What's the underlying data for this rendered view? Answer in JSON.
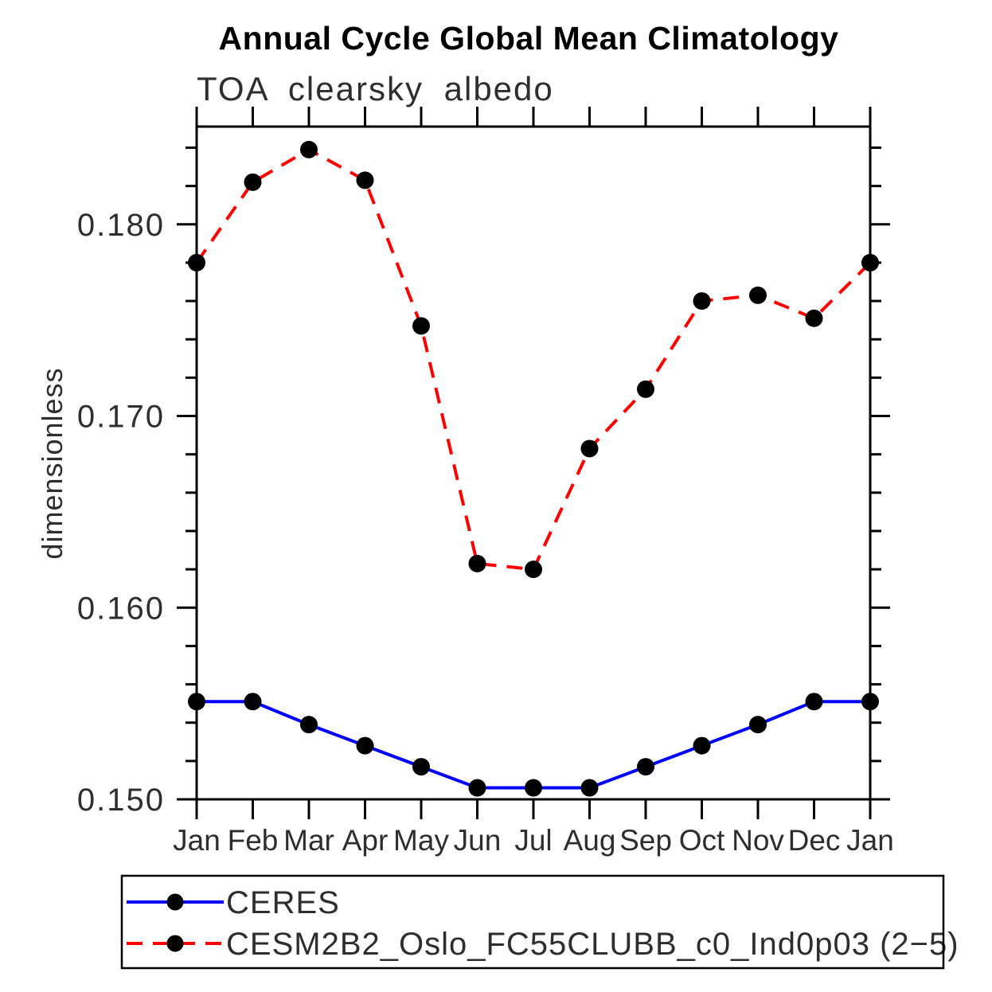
{
  "chart_data": {
    "type": "line",
    "title": "Annual Cycle Global Mean Climatology",
    "subtitle": "TOA clearsky albedo",
    "ylabel": "dimensionless",
    "xlabel": "",
    "x_categories": [
      "Jan",
      "Feb",
      "Mar",
      "Apr",
      "May",
      "Jun",
      "Jul",
      "Aug",
      "Sep",
      "Oct",
      "Nov",
      "Dec",
      "Jan"
    ],
    "ylim": [
      0.15,
      0.1851
    ],
    "yticks_major": [
      0.15,
      0.16,
      0.17,
      0.18
    ],
    "ytick_labels": [
      "0.150",
      "0.160",
      "0.170",
      "0.180"
    ],
    "ytick_minor_interval": 0.002,
    "grid": false,
    "legend_position": "bottom",
    "axis_color": "#000000",
    "marker_color": "#000000",
    "series": [
      {
        "name": "CERES",
        "color": "#0000ff",
        "line_style": "solid",
        "marker": "filled-circle",
        "values": [
          0.1551,
          0.1551,
          0.1539,
          0.1528,
          0.1517,
          0.1506,
          0.1506,
          0.1506,
          0.1517,
          0.1528,
          0.1539,
          0.1551,
          0.1551
        ]
      },
      {
        "name": "CESM2B2_Oslo_FC55CLUBB_c0_Ind0p03 (2−5)",
        "color": "#ff0000",
        "line_style": "dashed",
        "marker": "filled-circle",
        "values": [
          0.178,
          0.1822,
          0.1839,
          0.1823,
          0.1747,
          0.1623,
          0.162,
          0.1683,
          0.1714,
          0.176,
          0.1763,
          0.1751,
          0.178
        ]
      }
    ]
  }
}
